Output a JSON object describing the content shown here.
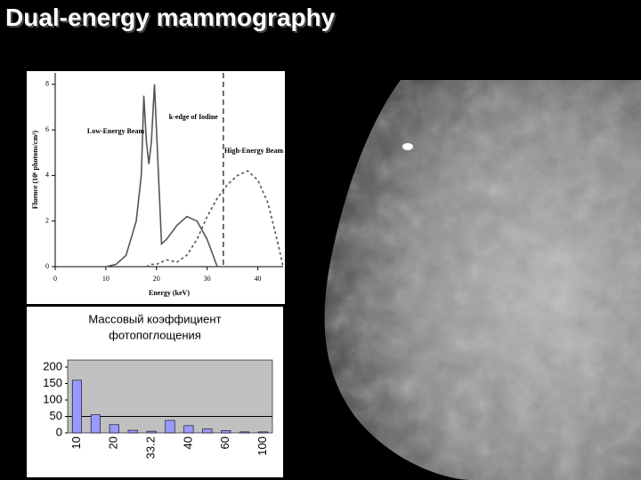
{
  "title": "Dual-energy mammography",
  "chart_data": [
    {
      "type": "line",
      "xlabel": "Energy (keV)",
      "ylabel": "Fluence (10⁶ photons/cm²)",
      "x": [
        10,
        12,
        14,
        16,
        17,
        17.5,
        18,
        18.5,
        19,
        19.6,
        20,
        21,
        22,
        24,
        26,
        28,
        30,
        32,
        34,
        36,
        38,
        40,
        42,
        44,
        45
      ],
      "series": [
        {
          "name": "Low-Energy Beam",
          "color": "#555555",
          "dash": false,
          "values": [
            0,
            0.1,
            0.5,
            2,
            4,
            7.5,
            5.5,
            4.5,
            5.5,
            8,
            6,
            1,
            1.2,
            1.8,
            2.2,
            2,
            1.2,
            0,
            null,
            null,
            null,
            null,
            null,
            null,
            null
          ]
        },
        {
          "name": "High-Energy Beam",
          "color": "#555555",
          "dash": true,
          "values": [
            null,
            null,
            null,
            null,
            null,
            null,
            0,
            0.05,
            0.1,
            0.1,
            0.1,
            0.2,
            0.3,
            0.2,
            0.5,
            1.2,
            2.2,
            3,
            3.6,
            4,
            4.2,
            3.8,
            2.8,
            1,
            0
          ]
        }
      ],
      "vline": {
        "label": "k-edge of Iodine",
        "value": 33.2
      },
      "xlim": [
        0,
        45
      ],
      "xticks": [
        0,
        10,
        20,
        30,
        40
      ],
      "ylim": [
        0,
        8.5
      ],
      "yticks": [
        0,
        2,
        4,
        6,
        8
      ]
    },
    {
      "type": "bar",
      "title": [
        "Массовый коэффициент",
        "фотопоглощения"
      ],
      "categories": [
        "10",
        null,
        "20",
        null,
        "33.2",
        null,
        "40",
        null,
        "60",
        null,
        "100"
      ],
      "values": [
        160,
        55,
        25,
        8,
        5,
        38,
        22,
        12,
        7,
        3,
        3
      ],
      "color": "#9999ff",
      "hline": 50,
      "ylim": [
        0,
        200
      ],
      "yticks": [
        0,
        50,
        100,
        150,
        200
      ]
    }
  ]
}
